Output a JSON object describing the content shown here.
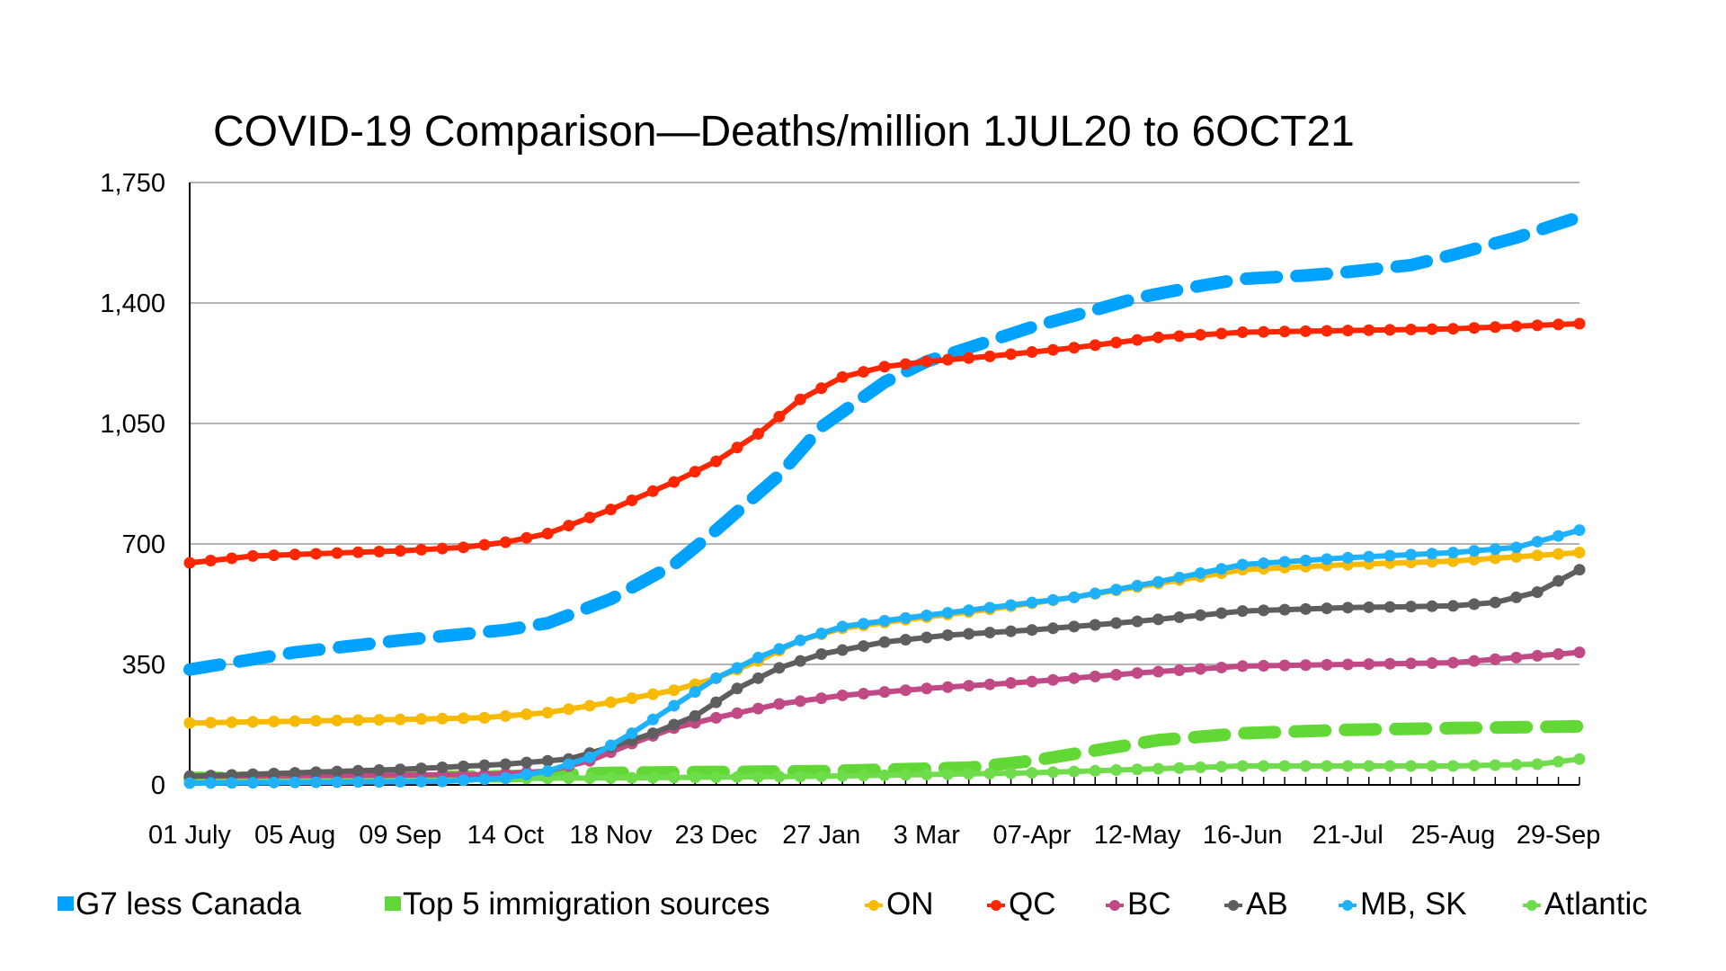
{
  "chart_data": {
    "type": "line",
    "title": "COVID-19 Comparison—Deaths/million 1JUL20 to 6OCT21",
    "xlabel": "",
    "ylabel": "",
    "ylim": [
      0,
      1750
    ],
    "yticks": [
      0,
      350,
      700,
      1050,
      1400,
      1750
    ],
    "ytick_labels": [
      "0",
      "350",
      "700",
      "1,050",
      "1,400",
      "1,750"
    ],
    "grid": "horizontal",
    "x_interval": "weekly",
    "n_points": 67,
    "x_tick_every": 5,
    "x_tick_labels": [
      "01 July",
      "05 Aug",
      "09 Sep",
      "14 Oct",
      "18 Nov",
      "23 Dec",
      "27 Jan",
      "3 Mar",
      "07-Apr",
      "12-May",
      "16-Jun",
      "21-Jul",
      "25-Aug",
      "29-Sep"
    ],
    "legend_position": "bottom",
    "series": [
      {
        "name": "G7 less Canada",
        "color": "#00A2FF",
        "style": "dash-dot-heavy",
        "markers": false,
        "key_points": [
          [
            0,
            335
          ],
          [
            5,
            385
          ],
          [
            10,
            420
          ],
          [
            15,
            450
          ],
          [
            17,
            470
          ],
          [
            20,
            540
          ],
          [
            23,
            640
          ],
          [
            25,
            740
          ],
          [
            28,
            900
          ],
          [
            30,
            1040
          ],
          [
            33,
            1170
          ],
          [
            35,
            1230
          ],
          [
            38,
            1290
          ],
          [
            40,
            1330
          ],
          [
            43,
            1380
          ],
          [
            45,
            1415
          ],
          [
            48,
            1450
          ],
          [
            50,
            1470
          ],
          [
            53,
            1480
          ],
          [
            55,
            1490
          ],
          [
            58,
            1510
          ],
          [
            60,
            1540
          ],
          [
            63,
            1590
          ],
          [
            66,
            1650
          ]
        ]
      },
      {
        "name": "Top 5 immigration sources",
        "color": "#61D836",
        "style": "dash-dot-heavy",
        "markers": false,
        "key_points": [
          [
            0,
            20
          ],
          [
            15,
            25
          ],
          [
            20,
            35
          ],
          [
            30,
            40
          ],
          [
            37,
            50
          ],
          [
            40,
            70
          ],
          [
            43,
            100
          ],
          [
            46,
            130
          ],
          [
            50,
            150
          ],
          [
            55,
            160
          ],
          [
            60,
            165
          ],
          [
            66,
            170
          ]
        ]
      },
      {
        "name": "ON",
        "color": "#F8BA00",
        "style": "solid",
        "markers": true,
        "key_points": [
          [
            0,
            180
          ],
          [
            10,
            190
          ],
          [
            14,
            195
          ],
          [
            17,
            210
          ],
          [
            20,
            240
          ],
          [
            23,
            275
          ],
          [
            25,
            310
          ],
          [
            27,
            360
          ],
          [
            29,
            420
          ],
          [
            31,
            455
          ],
          [
            34,
            480
          ],
          [
            38,
            510
          ],
          [
            42,
            545
          ],
          [
            46,
            585
          ],
          [
            50,
            625
          ],
          [
            55,
            640
          ],
          [
            60,
            650
          ],
          [
            66,
            675
          ]
        ]
      },
      {
        "name": "QC",
        "color": "#FF2600",
        "style": "solid",
        "markers": true,
        "key_points": [
          [
            0,
            645
          ],
          [
            3,
            665
          ],
          [
            10,
            680
          ],
          [
            13,
            690
          ],
          [
            15,
            705
          ],
          [
            17,
            730
          ],
          [
            20,
            800
          ],
          [
            23,
            880
          ],
          [
            25,
            940
          ],
          [
            27,
            1020
          ],
          [
            29,
            1120
          ],
          [
            31,
            1185
          ],
          [
            33,
            1215
          ],
          [
            35,
            1230
          ],
          [
            38,
            1245
          ],
          [
            42,
            1270
          ],
          [
            46,
            1300
          ],
          [
            50,
            1315
          ],
          [
            55,
            1320
          ],
          [
            60,
            1325
          ],
          [
            66,
            1340
          ]
        ]
      },
      {
        "name": "BC",
        "color": "#C14A86",
        "style": "solid",
        "markers": true,
        "key_points": [
          [
            0,
            25
          ],
          [
            14,
            30
          ],
          [
            17,
            40
          ],
          [
            19,
            70
          ],
          [
            21,
            120
          ],
          [
            23,
            165
          ],
          [
            25,
            195
          ],
          [
            28,
            235
          ],
          [
            31,
            260
          ],
          [
            35,
            280
          ],
          [
            40,
            300
          ],
          [
            45,
            325
          ],
          [
            50,
            345
          ],
          [
            55,
            350
          ],
          [
            60,
            355
          ],
          [
            66,
            385
          ]
        ]
      },
      {
        "name": "AB",
        "color": "#5E5E5E",
        "style": "solid",
        "markers": true,
        "key_points": [
          [
            0,
            25
          ],
          [
            10,
            45
          ],
          [
            15,
            60
          ],
          [
            18,
            75
          ],
          [
            20,
            110
          ],
          [
            22,
            150
          ],
          [
            24,
            200
          ],
          [
            26,
            280
          ],
          [
            28,
            340
          ],
          [
            30,
            380
          ],
          [
            33,
            415
          ],
          [
            36,
            435
          ],
          [
            40,
            450
          ],
          [
            45,
            475
          ],
          [
            50,
            505
          ],
          [
            55,
            515
          ],
          [
            60,
            520
          ],
          [
            62,
            530
          ],
          [
            64,
            560
          ],
          [
            66,
            625
          ]
        ]
      },
      {
        "name": "MB, SK",
        "color": "#1EB1FF",
        "style": "solid",
        "markers": true,
        "key_points": [
          [
            0,
            5
          ],
          [
            12,
            10
          ],
          [
            15,
            20
          ],
          [
            17,
            40
          ],
          [
            19,
            80
          ],
          [
            21,
            150
          ],
          [
            23,
            230
          ],
          [
            25,
            310
          ],
          [
            27,
            370
          ],
          [
            29,
            420
          ],
          [
            31,
            460
          ],
          [
            34,
            485
          ],
          [
            38,
            515
          ],
          [
            42,
            545
          ],
          [
            46,
            590
          ],
          [
            50,
            640
          ],
          [
            55,
            660
          ],
          [
            60,
            675
          ],
          [
            63,
            690
          ],
          [
            66,
            740
          ]
        ]
      },
      {
        "name": "Atlantic",
        "color": "#6FDC4C",
        "style": "solid",
        "markers": true,
        "key_points": [
          [
            0,
            15
          ],
          [
            20,
            20
          ],
          [
            30,
            25
          ],
          [
            40,
            35
          ],
          [
            45,
            45
          ],
          [
            50,
            55
          ],
          [
            60,
            55
          ],
          [
            64,
            60
          ],
          [
            66,
            75
          ]
        ]
      }
    ]
  }
}
